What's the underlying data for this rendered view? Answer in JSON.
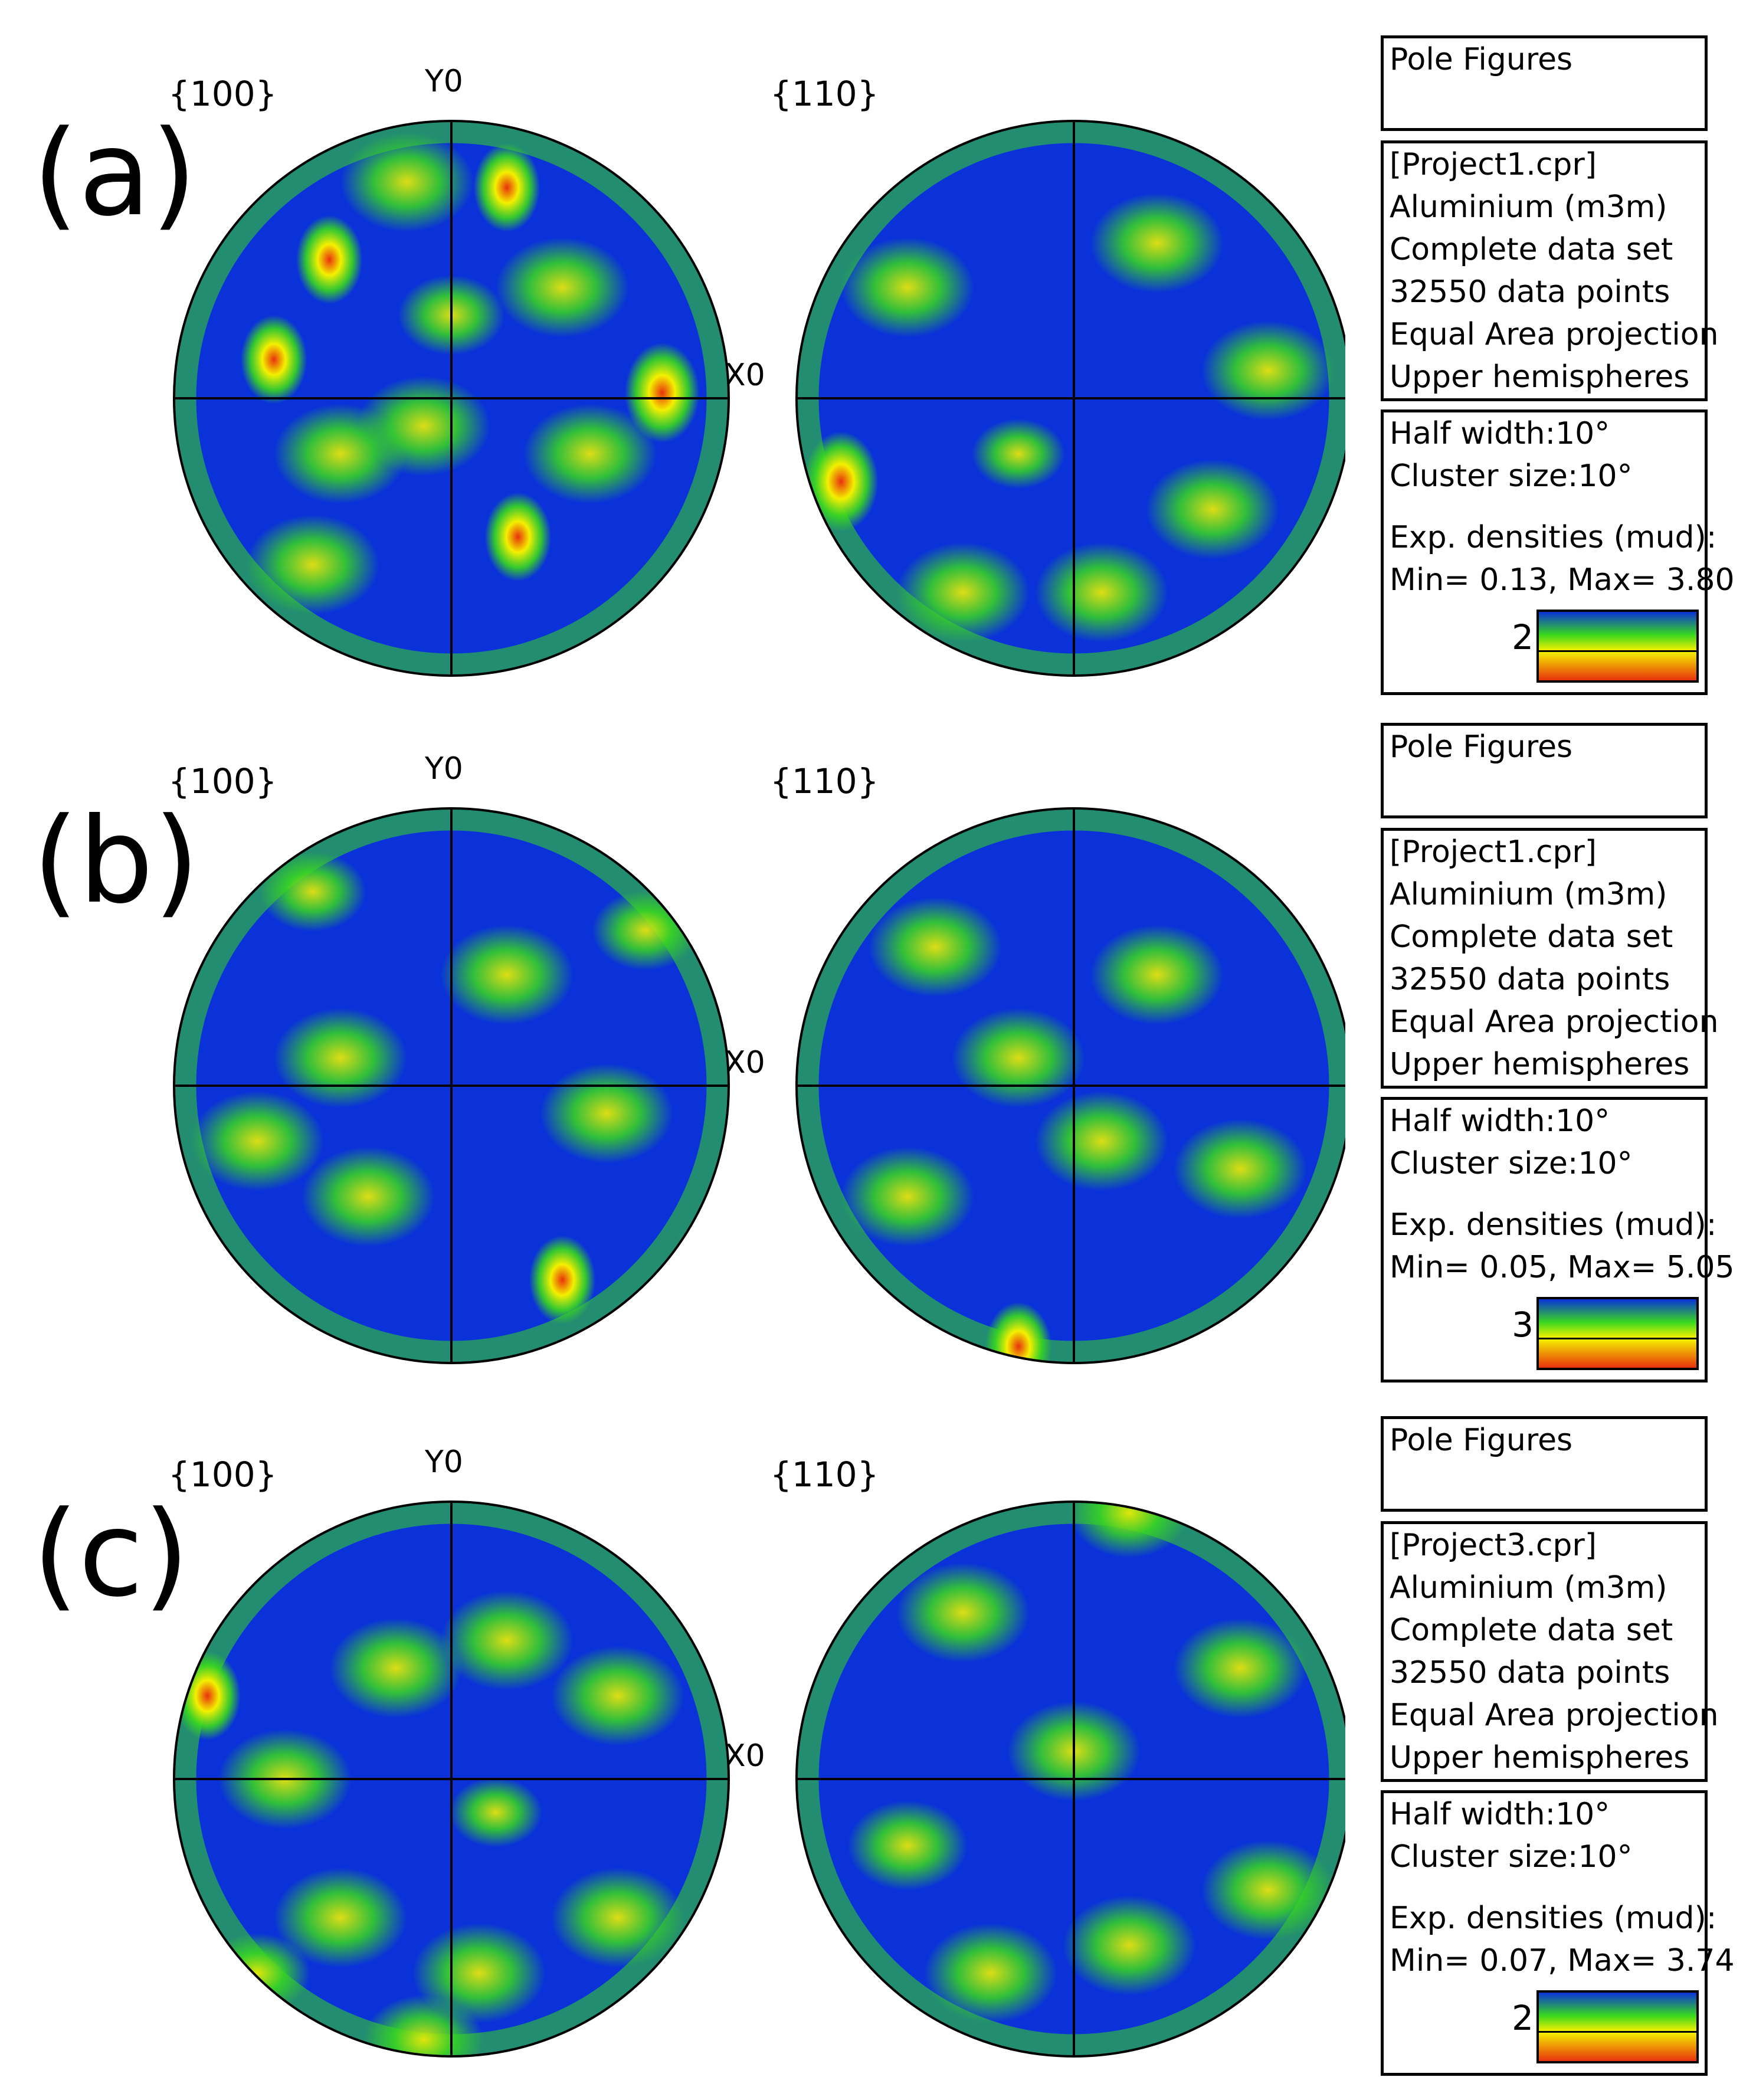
{
  "panels": [
    {
      "label": "(a)",
      "pf_left": "{100}",
      "pf_right": "{110}",
      "axis_y": "Y0",
      "axis_x": "X0",
      "info_title": "Pole Figures",
      "info_lines": [
        "[Project1.cpr]",
        "Aluminium (m3m)",
        "Complete data set",
        "32550 data points",
        "Equal Area projection",
        "Upper hemispheres"
      ],
      "param_lines": [
        "Half width:10°",
        "Cluster size:10°"
      ],
      "density_lines": [
        "Exp. densities (mud):",
        "Min= 0.13, Max= 3.80"
      ],
      "colorbar_label": "2",
      "blobs_left": [
        [
          0.42,
          0.11,
          0.1,
          0.7
        ],
        [
          0.28,
          0.25,
          0.08,
          0.75
        ],
        [
          0.18,
          0.43,
          0.08,
          0.85
        ],
        [
          0.88,
          0.49,
          0.09,
          0.85
        ],
        [
          0.62,
          0.75,
          0.08,
          0.75
        ],
        [
          0.6,
          0.12,
          0.08,
          0.95
        ],
        [
          0.25,
          0.8,
          0.1,
          0.55
        ],
        [
          0.7,
          0.3,
          0.1,
          0.45
        ],
        [
          0.45,
          0.55,
          0.1,
          0.45
        ],
        [
          0.75,
          0.6,
          0.1,
          0.5
        ],
        [
          0.3,
          0.6,
          0.1,
          0.45
        ],
        [
          0.5,
          0.35,
          0.08,
          0.4
        ]
      ],
      "blobs_right": [
        [
          0.08,
          0.65,
          0.09,
          0.78
        ],
        [
          0.4,
          0.6,
          0.07,
          0.65
        ],
        [
          0.2,
          0.3,
          0.1,
          0.45
        ],
        [
          0.65,
          0.22,
          0.1,
          0.45
        ],
        [
          0.75,
          0.7,
          0.1,
          0.5
        ],
        [
          0.55,
          0.85,
          0.1,
          0.45
        ],
        [
          0.3,
          0.85,
          0.1,
          0.4
        ],
        [
          0.85,
          0.45,
          0.1,
          0.4
        ]
      ]
    },
    {
      "label": "(b)",
      "pf_left": "{100}",
      "pf_right": "{110}",
      "axis_y": "Y0",
      "axis_x": "X0",
      "info_title": "Pole Figures",
      "info_lines": [
        "[Project1.cpr]",
        "Aluminium (m3m)",
        "Complete data set",
        "32550 data points",
        "Equal Area projection",
        "Upper hemispheres"
      ],
      "param_lines": [
        "Half width:10°",
        "Cluster size:10°"
      ],
      "density_lines": [
        "Exp. densities (mud):",
        "Min= 0.05, Max= 5.05"
      ],
      "colorbar_label": "3",
      "blobs_left": [
        [
          0.7,
          0.85,
          0.08,
          0.85
        ],
        [
          0.3,
          0.45,
          0.1,
          0.55
        ],
        [
          0.85,
          0.22,
          0.08,
          0.55
        ],
        [
          0.25,
          0.15,
          0.08,
          0.5
        ],
        [
          0.6,
          0.3,
          0.1,
          0.4
        ],
        [
          0.35,
          0.7,
          0.1,
          0.45
        ],
        [
          0.15,
          0.6,
          0.1,
          0.4
        ],
        [
          0.78,
          0.55,
          0.1,
          0.4
        ]
      ],
      "blobs_right": [
        [
          0.4,
          0.97,
          0.08,
          0.85
        ],
        [
          0.25,
          0.25,
          0.1,
          0.55
        ],
        [
          0.65,
          0.3,
          0.1,
          0.45
        ],
        [
          0.55,
          0.6,
          0.1,
          0.45
        ],
        [
          0.2,
          0.7,
          0.1,
          0.4
        ],
        [
          0.8,
          0.65,
          0.1,
          0.4
        ],
        [
          0.4,
          0.45,
          0.1,
          0.4
        ]
      ]
    },
    {
      "label": "(c)",
      "pf_left": "{100}",
      "pf_right": "{110}",
      "axis_y": "Y0",
      "axis_x": "X0",
      "info_title": "Pole Figures",
      "info_lines": [
        "[Project3.cpr]",
        "Aluminium (m3m)",
        "Complete data set",
        "32550 data points",
        "Equal Area projection",
        "Upper hemispheres"
      ],
      "param_lines": [
        "Half width:10°",
        "Cluster size:10°"
      ],
      "density_lines": [
        "Exp. densities (mud):",
        "Min= 0.07, Max= 3.74"
      ],
      "colorbar_label": "2",
      "blobs_left": [
        [
          0.06,
          0.35,
          0.08,
          0.8
        ],
        [
          0.58,
          0.56,
          0.07,
          0.7
        ],
        [
          0.45,
          0.97,
          0.09,
          0.65
        ],
        [
          0.2,
          0.5,
          0.1,
          0.5
        ],
        [
          0.6,
          0.25,
          0.1,
          0.45
        ],
        [
          0.4,
          0.3,
          0.1,
          0.45
        ],
        [
          0.8,
          0.35,
          0.1,
          0.45
        ],
        [
          0.3,
          0.75,
          0.1,
          0.5
        ],
        [
          0.8,
          0.75,
          0.1,
          0.45
        ],
        [
          0.55,
          0.85,
          0.1,
          0.45
        ],
        [
          0.15,
          0.85,
          0.08,
          0.5
        ]
      ],
      "blobs_right": [
        [
          0.6,
          0.02,
          0.09,
          0.65
        ],
        [
          0.2,
          0.62,
          0.09,
          0.7
        ],
        [
          0.3,
          0.2,
          0.1,
          0.5
        ],
        [
          0.8,
          0.3,
          0.1,
          0.45
        ],
        [
          0.5,
          0.45,
          0.1,
          0.45
        ],
        [
          0.6,
          0.8,
          0.1,
          0.45
        ],
        [
          0.85,
          0.7,
          0.1,
          0.45
        ],
        [
          0.35,
          0.85,
          0.1,
          0.4
        ]
      ]
    }
  ],
  "colors": {
    "low": "#0a32d8",
    "mid": "#38d81e",
    "yellow": "#f4f000",
    "high": "#e8320c"
  }
}
